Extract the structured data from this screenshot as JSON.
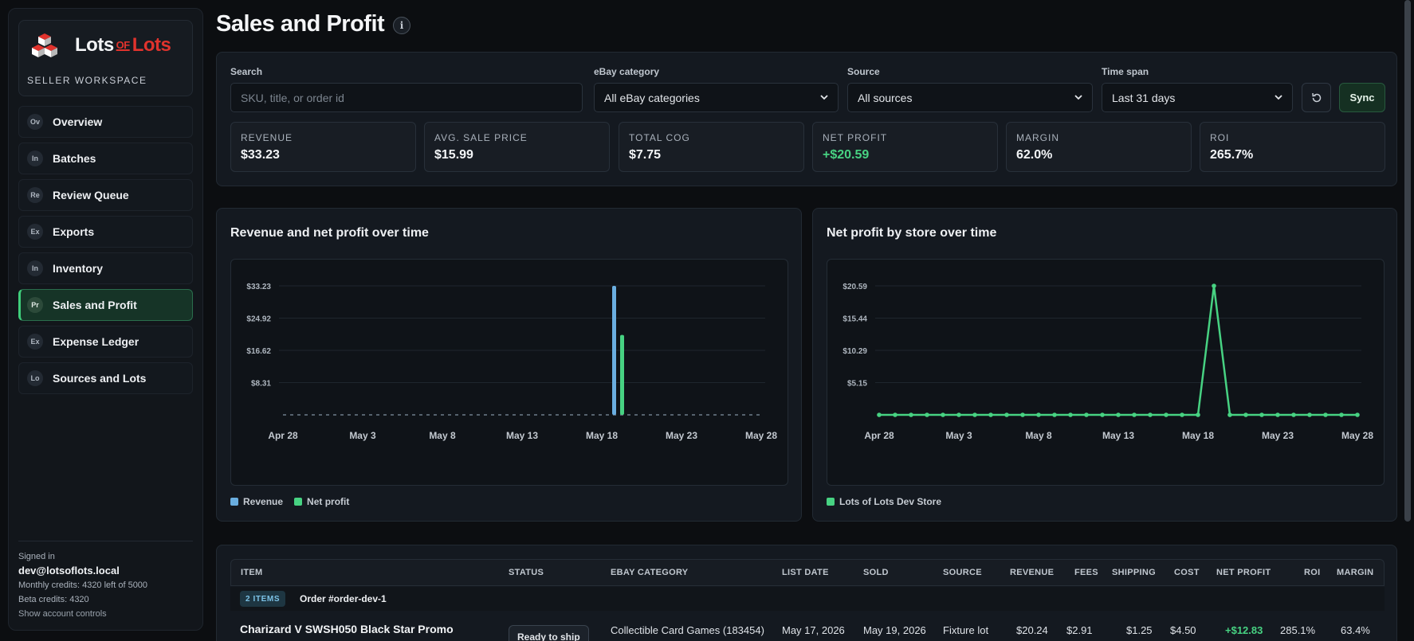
{
  "sidebar": {
    "brand": {
      "word1": "Lots",
      "word2": "OF",
      "word3": "Lots",
      "subtitle": "SELLER WORKSPACE"
    },
    "items": [
      {
        "badge": "Ov",
        "label": "Overview",
        "active": false
      },
      {
        "badge": "In",
        "label": "Batches",
        "active": false
      },
      {
        "badge": "Re",
        "label": "Review Queue",
        "active": false
      },
      {
        "badge": "Ex",
        "label": "Exports",
        "active": false
      },
      {
        "badge": "In",
        "label": "Inventory",
        "active": false
      },
      {
        "badge": "Pr",
        "label": "Sales and Profit",
        "active": true
      },
      {
        "badge": "Ex",
        "label": "Expense Ledger",
        "active": false
      },
      {
        "badge": "Lo",
        "label": "Sources and Lots",
        "active": false
      }
    ],
    "account": {
      "signed_in_label": "Signed in",
      "email": "dev@lotsoflots.local",
      "monthly_credits": "Monthly credits: 4320 left of 5000",
      "beta_credits": "Beta credits: 4320",
      "controls_link": "Show account controls"
    }
  },
  "page": {
    "title": "Sales and Profit",
    "info_icon": "i"
  },
  "filters": {
    "search": {
      "label": "Search",
      "placeholder": "SKU, title, or order id"
    },
    "category": {
      "label": "eBay category",
      "value": "All eBay categories"
    },
    "source": {
      "label": "Source",
      "value": "All sources"
    },
    "timespan": {
      "label": "Time span",
      "value": "Last 31 days"
    },
    "reset_icon": "refresh-icon",
    "sync_label": "Sync"
  },
  "kpis": [
    {
      "label": "REVENUE",
      "value": "$33.23"
    },
    {
      "label": "AVG. SALE PRICE",
      "value": "$15.99"
    },
    {
      "label": "TOTAL COG",
      "value": "$7.75"
    },
    {
      "label": "NET PROFIT",
      "value": "+$20.59"
    },
    {
      "label": "MARGIN",
      "value": "62.0%"
    },
    {
      "label": "ROI",
      "value": "265.7%"
    }
  ],
  "colors": {
    "accent_green": "#47d282",
    "revenue_blue": "#6aaee0",
    "brand_red": "#e0332d"
  },
  "chart_data": [
    {
      "type": "bar",
      "title": "Revenue and net profit over time",
      "x_ticks": [
        "Apr 28",
        "May 3",
        "May 8",
        "May 13",
        "May 18",
        "May 23",
        "May 28"
      ],
      "y_ticks": [
        "$33.23",
        "$24.92",
        "$16.62",
        "$8.31"
      ],
      "ylim": [
        0,
        33.23
      ],
      "x_range": [
        "Apr 28",
        "May 28"
      ],
      "highlight_date": "May 19",
      "series": [
        {
          "name": "Revenue",
          "color": "#6aaee0",
          "values_by_date": {
            "May 19": 33.23
          }
        },
        {
          "name": "Net profit",
          "color": "#47d282",
          "values_by_date": {
            "May 19": 20.59
          }
        }
      ],
      "legend": "bottom-left",
      "grid": true
    },
    {
      "type": "line",
      "title": "Net profit by store over time",
      "x_ticks": [
        "Apr 28",
        "May 3",
        "May 8",
        "May 13",
        "May 18",
        "May 23",
        "May 28"
      ],
      "y_ticks": [
        "$20.59",
        "$15.44",
        "$10.29",
        "$5.15"
      ],
      "ylim": [
        0,
        20.59
      ],
      "x_range": [
        "Apr 28",
        "May 28"
      ],
      "series": [
        {
          "name": "Lots of Lots Dev Store",
          "color": "#47d282",
          "values_by_date": {
            "May 19": 20.59
          }
        }
      ],
      "legend": "bottom-left",
      "grid": true
    }
  ],
  "table": {
    "columns": [
      "ITEM",
      "STATUS",
      "EBAY CATEGORY",
      "LIST DATE",
      "SOLD",
      "SOURCE",
      "REVENUE",
      "FEES",
      "SHIPPING",
      "COST",
      "NET PROFIT",
      "ROI",
      "MARGIN"
    ],
    "group": {
      "badge": "2 ITEMS",
      "order": "Order #order-dev-1"
    },
    "rows": [
      {
        "item": "Charizard V SWSH050 Black Star Promo",
        "status": "Ready to ship",
        "category": "Collectible Card Games (183454)",
        "list_date": "May 17, 2026",
        "sold": "May 19, 2026",
        "source": "Fixture lot",
        "revenue": "$20.24",
        "fees": "$2.91",
        "shipping": "$1.25",
        "cost": "$4.50",
        "net_profit": "+$12.83",
        "roi": "285.1%",
        "margin": "63.4%"
      }
    ]
  }
}
